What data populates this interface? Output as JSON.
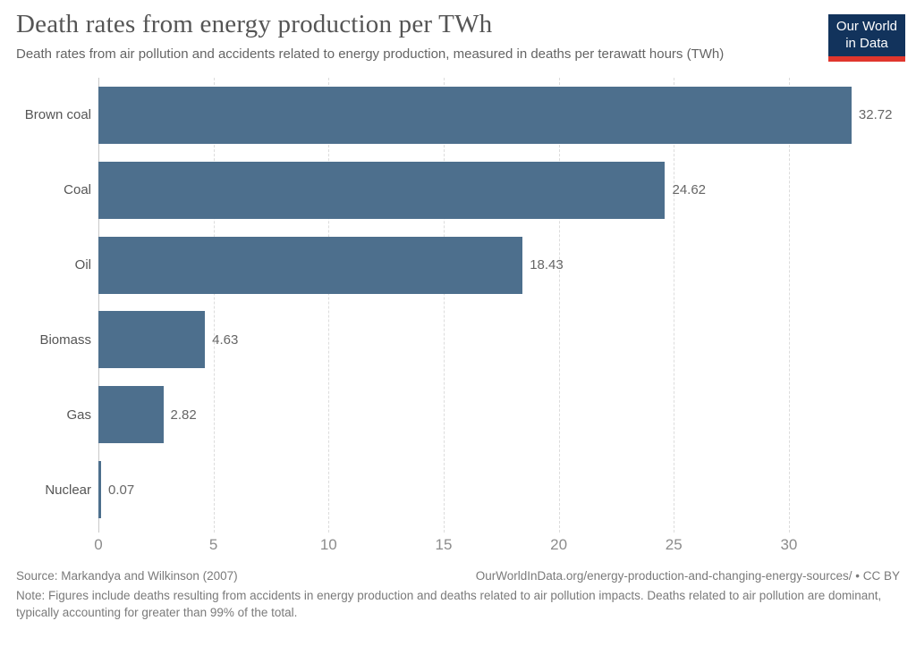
{
  "header": {
    "title": "Death rates from energy production per TWh",
    "subtitle": "Death rates from air pollution and accidents related to energy production, measured in deaths per terawatt hours (TWh)"
  },
  "logo": {
    "line1": "Our World",
    "line2": "in Data",
    "bg_color": "#12335c",
    "accent_color": "#e0362d",
    "text_color": "#ffffff"
  },
  "chart_data": {
    "type": "bar",
    "orientation": "horizontal",
    "title": "Death rates from energy production per TWh",
    "categories": [
      "Brown coal",
      "Coal",
      "Oil",
      "Biomass",
      "Gas",
      "Nuclear"
    ],
    "values": [
      32.72,
      24.62,
      18.43,
      4.63,
      2.82,
      0.07
    ],
    "value_labels": [
      "32.72",
      "24.62",
      "18.43",
      "4.63",
      "2.82",
      "0.07"
    ],
    "xlim": [
      0,
      34.9
    ],
    "xticks": [
      0,
      5,
      10,
      15,
      20,
      25,
      30
    ],
    "grid": "vertical-dashed",
    "legend": "none",
    "bar_color": "#4d6f8d",
    "xlabel": "",
    "ylabel": ""
  },
  "footer": {
    "source": "Source: Markandya and Wilkinson (2007)",
    "link": "OurWorldInData.org/energy-production-and-changing-energy-sources/ • CC BY",
    "note": "Note: Figures include deaths resulting from accidents in energy production and deaths related to air pollution impacts. Deaths related to air pollution are dominant, typically accounting for greater than 99% of the total."
  },
  "colors": {
    "bar": "#4d6f8d",
    "title_text": "#555555",
    "subtitle_text": "#646464",
    "tick_text": "#8c8c8c",
    "gridline": "#dcdcdc",
    "footer_text": "#7a7a7a",
    "logo_bg": "#12335c",
    "logo_accent": "#e0362d"
  }
}
